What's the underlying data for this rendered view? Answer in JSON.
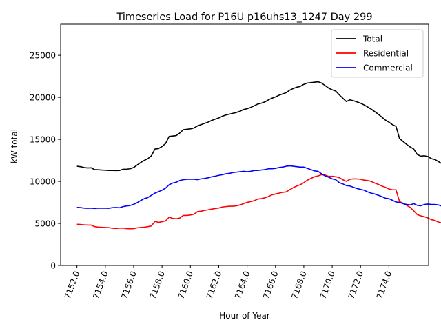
{
  "chart_data": {
    "type": "line",
    "title": "Timeseries Load for P16U p16uhs13_1247  Day 299",
    "xlabel": "Hour of Year",
    "ylabel": "kW total",
    "xlim": [
      7150.85,
      7176.8
    ],
    "ylim": [
      0,
      28700
    ],
    "xticks": [
      7152,
      7154,
      7156,
      7158,
      7160,
      7162,
      7164,
      7166,
      7168,
      7170,
      7172,
      7174
    ],
    "xtick_labels": [
      "7152.0",
      "7154.0",
      "7156.0",
      "7158.0",
      "7160.0",
      "7162.0",
      "7164.0",
      "7166.0",
      "7168.0",
      "7170.0",
      "7172.0",
      "7174.0"
    ],
    "yticks": [
      0,
      5000,
      10000,
      15000,
      20000,
      25000
    ],
    "ytick_labels": [
      "0",
      "5000",
      "10000",
      "15000",
      "20000",
      "25000"
    ],
    "grid": false,
    "legend_position": "top-right",
    "x_start": 7152,
    "x_step": 0.25,
    "series": [
      {
        "name": "Total",
        "color": "#000000",
        "values": [
          11800,
          11750,
          11650,
          11600,
          11620,
          11400,
          11380,
          11350,
          11330,
          11300,
          11300,
          11290,
          11300,
          11450,
          11460,
          11500,
          11650,
          11950,
          12250,
          12500,
          12700,
          13050,
          13850,
          13900,
          14150,
          14500,
          15350,
          15400,
          15450,
          15750,
          16150,
          16200,
          16250,
          16350,
          16600,
          16750,
          16900,
          17050,
          17250,
          17400,
          17550,
          17750,
          17900,
          18000,
          18100,
          18200,
          18350,
          18550,
          18650,
          18800,
          19000,
          19200,
          19300,
          19450,
          19700,
          19900,
          20050,
          20250,
          20400,
          20550,
          20850,
          21050,
          21200,
          21300,
          21550,
          21700,
          21750,
          21800,
          21850,
          21700,
          21400,
          21100,
          20900,
          20750,
          20300,
          19900,
          19500,
          19700,
          19600,
          19450,
          19300,
          19100,
          18850,
          18600,
          18300,
          18000,
          17650,
          17300,
          17050,
          16750,
          16550,
          15100,
          14750,
          14400,
          14100,
          13850,
          13200,
          13000,
          13050,
          12950,
          12700,
          12600,
          12350,
          12100
        ]
      },
      {
        "name": "Residential",
        "color": "#ff0000",
        "values": [
          4900,
          4870,
          4830,
          4800,
          4800,
          4620,
          4560,
          4540,
          4520,
          4500,
          4430,
          4400,
          4440,
          4450,
          4380,
          4370,
          4380,
          4480,
          4520,
          4550,
          4620,
          4700,
          5250,
          5120,
          5200,
          5300,
          5750,
          5600,
          5550,
          5650,
          5950,
          5950,
          6000,
          6100,
          6400,
          6450,
          6550,
          6620,
          6700,
          6780,
          6830,
          6950,
          7000,
          7050,
          7050,
          7100,
          7200,
          7350,
          7500,
          7600,
          7700,
          7900,
          7950,
          8050,
          8200,
          8400,
          8500,
          8600,
          8700,
          8750,
          9000,
          9250,
          9450,
          9600,
          9850,
          10150,
          10350,
          10550,
          10650,
          10800,
          10750,
          10600,
          10600,
          10550,
          10450,
          10200,
          10000,
          10250,
          10300,
          10300,
          10250,
          10150,
          10100,
          10000,
          9800,
          9650,
          9450,
          9300,
          9100,
          9000,
          9000,
          7600,
          7400,
          7150,
          6900,
          6500,
          6050,
          5900,
          5800,
          5650,
          5450,
          5350,
          5150,
          5050
        ]
      },
      {
        "name": "Commercial",
        "color": "#0000ff",
        "values": [
          6900,
          6880,
          6820,
          6800,
          6820,
          6780,
          6820,
          6810,
          6810,
          6800,
          6870,
          6890,
          6860,
          7000,
          7080,
          7130,
          7270,
          7470,
          7730,
          7950,
          8080,
          8350,
          8600,
          8780,
          8950,
          9200,
          9600,
          9800,
          9900,
          10100,
          10200,
          10250,
          10250,
          10250,
          10200,
          10300,
          10350,
          10430,
          10550,
          10620,
          10720,
          10800,
          10900,
          10950,
          11050,
          11100,
          11150,
          11200,
          11150,
          11200,
          11300,
          11300,
          11350,
          11400,
          11500,
          11500,
          11550,
          11650,
          11700,
          11800,
          11850,
          11800,
          11750,
          11700,
          11700,
          11550,
          11400,
          11250,
          11200,
          10900,
          10650,
          10500,
          10300,
          10200,
          9850,
          9700,
          9500,
          9450,
          9300,
          9150,
          9050,
          8950,
          8750,
          8600,
          8500,
          8350,
          8200,
          8000,
          7950,
          7750,
          7550,
          7500,
          7350,
          7250,
          7200,
          7350,
          7150,
          7100,
          7250,
          7300,
          7250,
          7250,
          7200,
          7050
        ]
      }
    ]
  }
}
